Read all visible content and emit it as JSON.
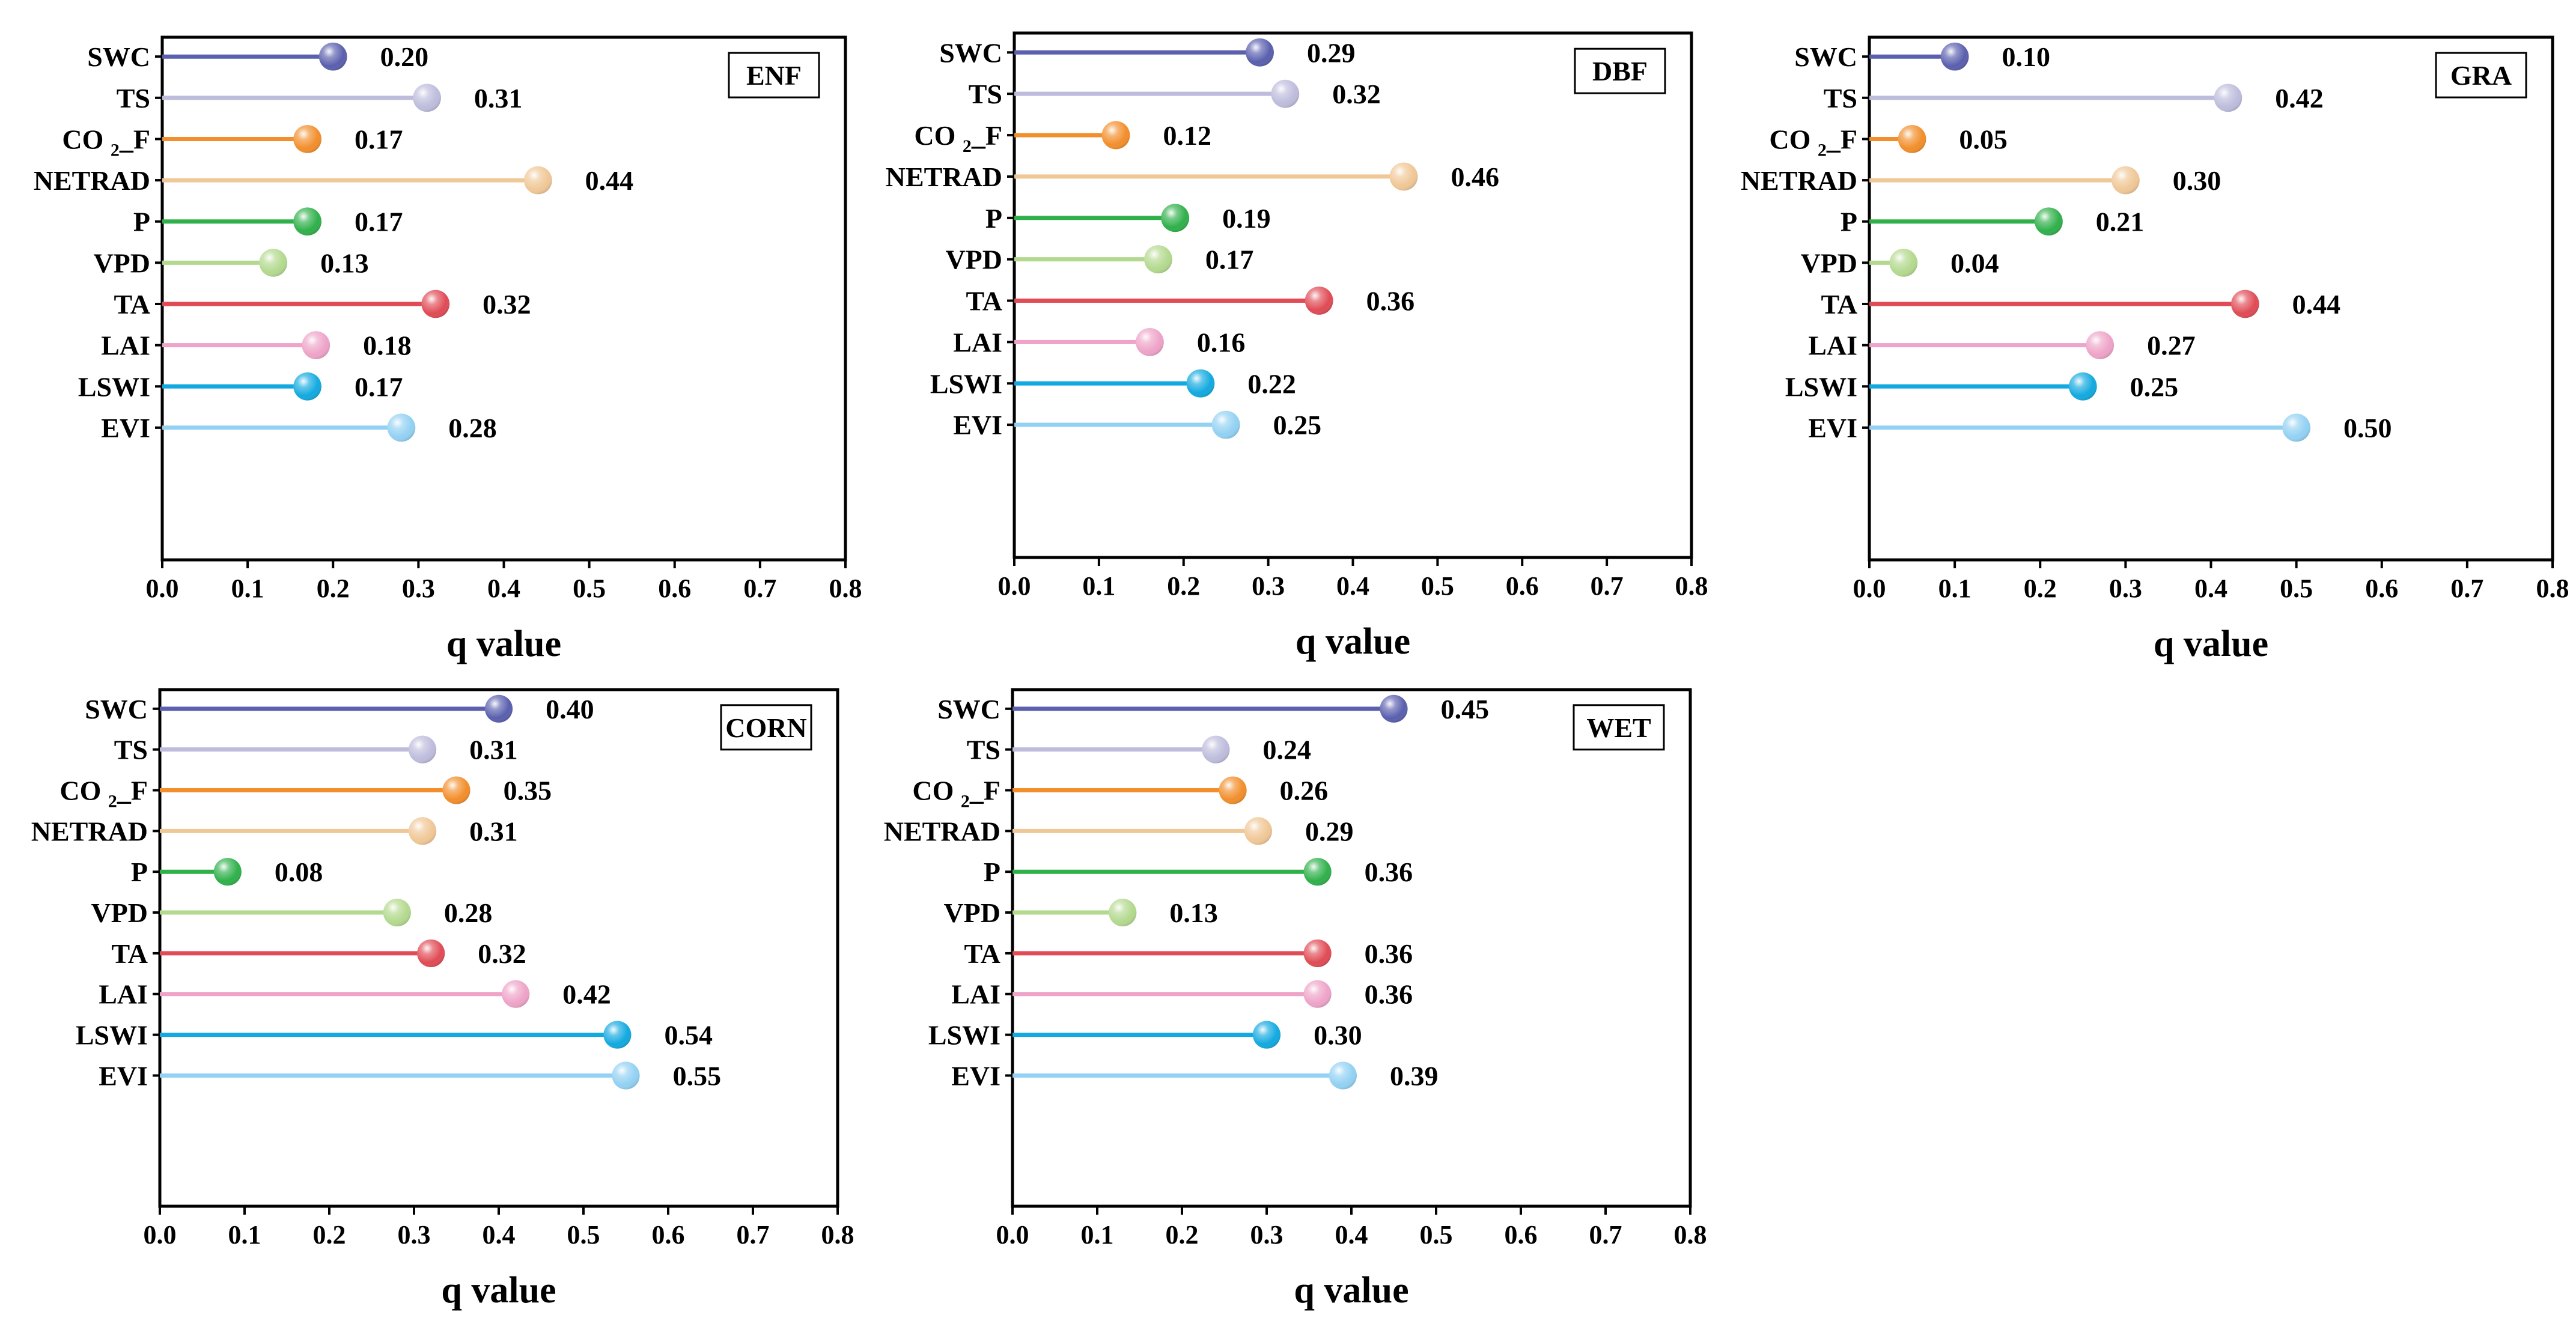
{
  "chart_data": [
    {
      "type": "lollipop",
      "title": "ENF",
      "xlabel": "q value",
      "xlim": [
        0.0,
        0.8
      ],
      "xticks": [
        "0.0",
        "0.1",
        "0.2",
        "0.3",
        "0.4",
        "0.5",
        "0.6",
        "0.7",
        "0.8"
      ],
      "categories": [
        "SWC",
        "TS",
        "CO2_F",
        "NETRAD",
        "P",
        "VPD",
        "TA",
        "LAI",
        "LSWI",
        "EVI"
      ],
      "values": [
        0.2,
        0.31,
        0.17,
        0.44,
        0.17,
        0.13,
        0.32,
        0.18,
        0.17,
        0.28
      ],
      "labels": [
        "0.20",
        "0.31",
        "0.17",
        "0.44",
        "0.17",
        "0.13",
        "0.32",
        "0.18",
        "0.17",
        "0.28"
      ]
    },
    {
      "type": "lollipop",
      "title": "DBF",
      "xlabel": "q value",
      "xlim": [
        0.0,
        0.8
      ],
      "xticks": [
        "0.0",
        "0.1",
        "0.2",
        "0.3",
        "0.4",
        "0.5",
        "0.6",
        "0.7",
        "0.8"
      ],
      "categories": [
        "SWC",
        "TS",
        "CO2_F",
        "NETRAD",
        "P",
        "VPD",
        "TA",
        "LAI",
        "LSWI",
        "EVI"
      ],
      "values": [
        0.29,
        0.32,
        0.12,
        0.46,
        0.19,
        0.17,
        0.36,
        0.16,
        0.22,
        0.25
      ],
      "labels": [
        "0.29",
        "0.32",
        "0.12",
        "0.46",
        "0.19",
        "0.17",
        "0.36",
        "0.16",
        "0.22",
        "0.25"
      ]
    },
    {
      "type": "lollipop",
      "title": "GRA",
      "xlabel": "q value",
      "xlim": [
        0.0,
        0.8
      ],
      "xticks": [
        "0.0",
        "0.1",
        "0.2",
        "0.3",
        "0.4",
        "0.5",
        "0.6",
        "0.7",
        "0.8"
      ],
      "categories": [
        "SWC",
        "TS",
        "CO2_F",
        "NETRAD",
        "P",
        "VPD",
        "TA",
        "LAI",
        "LSWI",
        "EVI"
      ],
      "values": [
        0.1,
        0.42,
        0.05,
        0.3,
        0.21,
        0.04,
        0.44,
        0.27,
        0.25,
        0.5
      ],
      "labels": [
        "0.10",
        "0.42",
        "0.05",
        "0.30",
        "0.21",
        "0.04",
        "0.44",
        "0.27",
        "0.25",
        "0.50"
      ]
    },
    {
      "type": "lollipop",
      "title": "CORN",
      "xlabel": "q value",
      "xlim": [
        0.0,
        0.8
      ],
      "xticks": [
        "0.0",
        "0.1",
        "0.2",
        "0.3",
        "0.4",
        "0.5",
        "0.6",
        "0.7",
        "0.8"
      ],
      "categories": [
        "SWC",
        "TS",
        "CO2_F",
        "NETRAD",
        "P",
        "VPD",
        "TA",
        "LAI",
        "LSWI",
        "EVI"
      ],
      "values": [
        0.4,
        0.31,
        0.35,
        0.31,
        0.08,
        0.28,
        0.32,
        0.42,
        0.54,
        0.55
      ],
      "labels": [
        "0.40",
        "0.31",
        "0.35",
        "0.31",
        "0.08",
        "0.28",
        "0.32",
        "0.42",
        "0.54",
        "0.55"
      ]
    },
    {
      "type": "lollipop",
      "title": "WET",
      "xlabel": "q value",
      "xlim": [
        0.0,
        0.8
      ],
      "xticks": [
        "0.0",
        "0.1",
        "0.2",
        "0.3",
        "0.4",
        "0.5",
        "0.6",
        "0.7",
        "0.8"
      ],
      "categories": [
        "SWC",
        "TS",
        "CO2_F",
        "NETRAD",
        "P",
        "VPD",
        "TA",
        "LAI",
        "LSWI",
        "EVI"
      ],
      "values": [
        0.45,
        0.24,
        0.26,
        0.29,
        0.36,
        0.13,
        0.36,
        0.36,
        0.3,
        0.39
      ],
      "labels": [
        "0.45",
        "0.24",
        "0.26",
        "0.29",
        "0.36",
        "0.13",
        "0.36",
        "0.36",
        "0.30",
        "0.39"
      ]
    }
  ],
  "series_colors": [
    "#5A5FAE",
    "#BDBCDC",
    "#F28E2B",
    "#F0C796",
    "#2FB04A",
    "#B3D98E",
    "#E04B55",
    "#EEA3C8",
    "#12A9E0",
    "#92D1F3"
  ],
  "category_display": {
    "CO2_F": {
      "main": "CO",
      "sub": "2",
      "tail": "_F"
    }
  }
}
